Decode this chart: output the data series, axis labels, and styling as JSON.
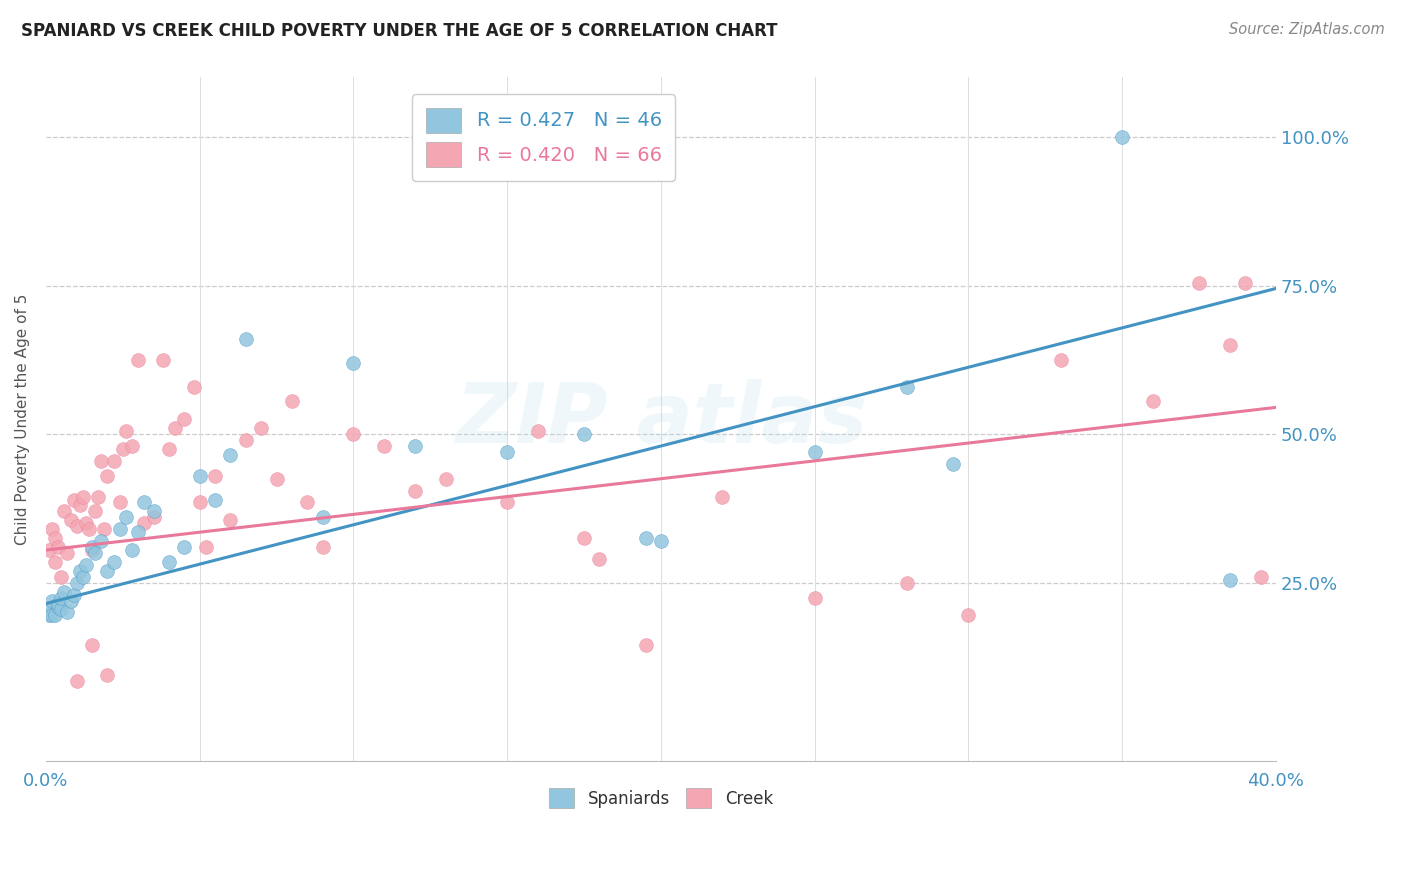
{
  "title": "SPANIARD VS CREEK CHILD POVERTY UNDER THE AGE OF 5 CORRELATION CHART",
  "source": "Source: ZipAtlas.com",
  "ylabel": "Child Poverty Under the Age of 5",
  "ytick_labels": [
    "100.0%",
    "75.0%",
    "50.0%",
    "25.0%"
  ],
  "ytick_values": [
    1.0,
    0.75,
    0.5,
    0.25
  ],
  "xlim": [
    0.0,
    0.4
  ],
  "ylim": [
    -0.05,
    1.1
  ],
  "spaniards_R": 0.427,
  "spaniards_N": 46,
  "creek_R": 0.42,
  "creek_N": 66,
  "spaniard_color": "#92c5de",
  "creek_color": "#f4a6b2",
  "spaniard_line_color": "#4393c3",
  "creek_line_color": "#e8799a",
  "background_color": "#ffffff",
  "sp_line_x0": 0.0,
  "sp_line_y0": 0.215,
  "sp_line_x1": 0.4,
  "sp_line_y1": 0.745,
  "cr_line_x0": 0.0,
  "cr_line_y0": 0.305,
  "cr_line_x1": 0.4,
  "cr_line_y1": 0.545,
  "spaniard_pts_x": [
    0.001,
    0.001,
    0.002,
    0.002,
    0.003,
    0.004,
    0.004,
    0.005,
    0.005,
    0.006,
    0.007,
    0.008,
    0.009,
    0.01,
    0.011,
    0.012,
    0.013,
    0.015,
    0.016,
    0.018,
    0.02,
    0.022,
    0.024,
    0.026,
    0.028,
    0.03,
    0.032,
    0.035,
    0.04,
    0.045,
    0.05,
    0.055,
    0.06,
    0.065,
    0.09,
    0.1,
    0.12,
    0.15,
    0.175,
    0.195,
    0.2,
    0.25,
    0.28,
    0.295,
    0.35,
    0.385
  ],
  "spaniard_pts_y": [
    0.195,
    0.205,
    0.195,
    0.22,
    0.195,
    0.21,
    0.215,
    0.205,
    0.225,
    0.235,
    0.2,
    0.22,
    0.23,
    0.25,
    0.27,
    0.26,
    0.28,
    0.31,
    0.3,
    0.32,
    0.27,
    0.285,
    0.34,
    0.36,
    0.305,
    0.335,
    0.385,
    0.37,
    0.285,
    0.31,
    0.43,
    0.39,
    0.465,
    0.66,
    0.36,
    0.62,
    0.48,
    0.47,
    0.5,
    0.325,
    0.32,
    0.47,
    0.58,
    0.45,
    1.0,
    0.255
  ],
  "creek_pts_x": [
    0.001,
    0.002,
    0.003,
    0.003,
    0.004,
    0.005,
    0.006,
    0.007,
    0.008,
    0.009,
    0.01,
    0.011,
    0.012,
    0.013,
    0.014,
    0.015,
    0.016,
    0.017,
    0.018,
    0.019,
    0.02,
    0.022,
    0.024,
    0.025,
    0.026,
    0.028,
    0.03,
    0.032,
    0.035,
    0.038,
    0.04,
    0.042,
    0.045,
    0.048,
    0.05,
    0.052,
    0.055,
    0.06,
    0.065,
    0.07,
    0.075,
    0.08,
    0.085,
    0.09,
    0.1,
    0.11,
    0.12,
    0.13,
    0.15,
    0.16,
    0.175,
    0.18,
    0.195,
    0.22,
    0.25,
    0.28,
    0.3,
    0.33,
    0.36,
    0.375,
    0.385,
    0.39,
    0.395,
    0.01,
    0.015,
    0.02
  ],
  "creek_pts_y": [
    0.305,
    0.34,
    0.285,
    0.325,
    0.31,
    0.26,
    0.37,
    0.3,
    0.355,
    0.39,
    0.345,
    0.38,
    0.395,
    0.35,
    0.34,
    0.305,
    0.37,
    0.395,
    0.455,
    0.34,
    0.43,
    0.455,
    0.385,
    0.475,
    0.505,
    0.48,
    0.625,
    0.35,
    0.36,
    0.625,
    0.475,
    0.51,
    0.525,
    0.58,
    0.385,
    0.31,
    0.43,
    0.355,
    0.49,
    0.51,
    0.425,
    0.555,
    0.385,
    0.31,
    0.5,
    0.48,
    0.405,
    0.425,
    0.385,
    0.505,
    0.325,
    0.29,
    0.145,
    0.395,
    0.225,
    0.25,
    0.195,
    0.625,
    0.555,
    0.755,
    0.65,
    0.755,
    0.26,
    0.085,
    0.145,
    0.095
  ]
}
